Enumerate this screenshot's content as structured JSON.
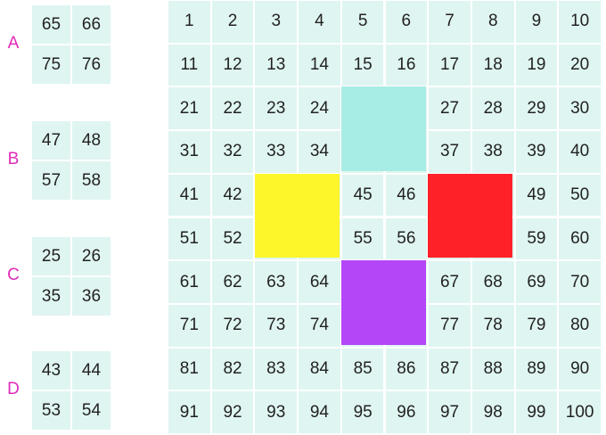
{
  "grid": {
    "rows": [
      [
        1,
        2,
        3,
        4,
        5,
        6,
        7,
        8,
        9,
        10
      ],
      [
        11,
        12,
        13,
        14,
        15,
        16,
        17,
        18,
        19,
        20
      ],
      [
        21,
        22,
        23,
        24,
        null,
        null,
        27,
        28,
        29,
        30
      ],
      [
        31,
        32,
        33,
        34,
        null,
        null,
        37,
        38,
        39,
        40
      ],
      [
        41,
        42,
        null,
        null,
        45,
        46,
        null,
        null,
        49,
        50
      ],
      [
        51,
        52,
        null,
        null,
        55,
        56,
        null,
        null,
        59,
        60
      ],
      [
        61,
        62,
        63,
        64,
        null,
        null,
        67,
        68,
        69,
        70
      ],
      [
        71,
        72,
        73,
        74,
        null,
        null,
        77,
        78,
        79,
        80
      ],
      [
        81,
        82,
        83,
        84,
        85,
        86,
        87,
        88,
        89,
        90
      ],
      [
        91,
        92,
        93,
        94,
        95,
        96,
        97,
        98,
        99,
        100
      ]
    ]
  },
  "pieces": [
    {
      "label": "A",
      "cells": [
        [
          65,
          66
        ],
        [
          75,
          76
        ]
      ]
    },
    {
      "label": "B",
      "cells": [
        [
          47,
          48
        ],
        [
          57,
          58
        ]
      ]
    },
    {
      "label": "C",
      "cells": [
        [
          25,
          26
        ],
        [
          35,
          36
        ]
      ]
    },
    {
      "label": "D",
      "cells": [
        [
          43,
          44
        ],
        [
          53,
          54
        ]
      ]
    }
  ]
}
